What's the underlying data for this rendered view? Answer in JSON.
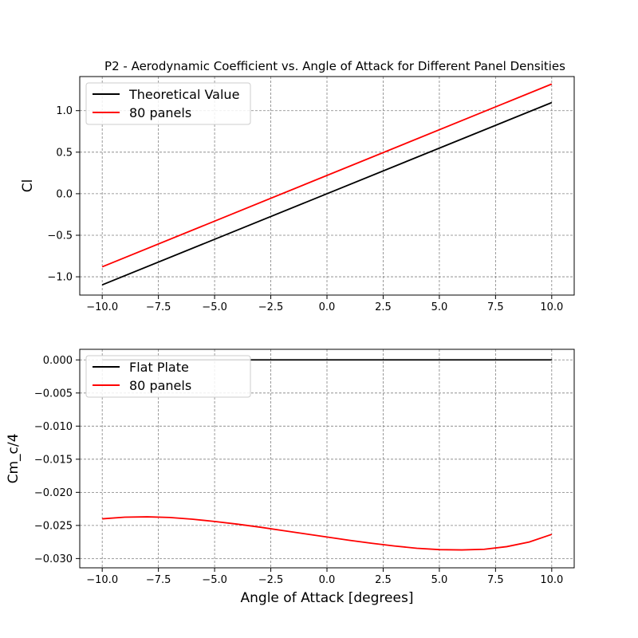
{
  "chart_data": [
    {
      "type": "line",
      "title": "P2 - Aerodynamic Coefficient vs. Angle of Attack for Different Panel Densities",
      "xlabel": "",
      "ylabel": "Cl",
      "xlim": [
        -11,
        11
      ],
      "ylim": [
        -1.22,
        1.41
      ],
      "xticks": [
        -10,
        -7.5,
        -5,
        -2.5,
        0,
        2.5,
        5,
        7.5,
        10
      ],
      "xtick_labels": [
        "−10.0",
        "−7.5",
        "−5.0",
        "−2.5",
        "0.0",
        "2.5",
        "5.0",
        "7.5",
        "10.0"
      ],
      "yticks": [
        -1.0,
        -0.5,
        0.0,
        0.5,
        1.0
      ],
      "ytick_labels": [
        "−1.0",
        "−0.5",
        "0.0",
        "0.5",
        "1.0"
      ],
      "grid": true,
      "legend_position": "upper-left",
      "series": [
        {
          "name": "Theoretical Value",
          "color": "#000000",
          "x": [
            -10,
            10
          ],
          "y": [
            -1.097,
            1.097
          ]
        },
        {
          "name": "80 panels",
          "color": "#ff0000",
          "x": [
            -10,
            10
          ],
          "y": [
            -0.88,
            1.32
          ]
        }
      ]
    },
    {
      "type": "line",
      "title": "",
      "xlabel": "Angle of Attack [degrees]",
      "ylabel": "Cm_c/4",
      "xlim": [
        -11,
        11
      ],
      "ylim": [
        -0.0314,
        0.0016
      ],
      "xticks": [
        -10,
        -7.5,
        -5,
        -2.5,
        0,
        2.5,
        5,
        7.5,
        10
      ],
      "xtick_labels": [
        "−10.0",
        "−7.5",
        "−5.0",
        "−2.5",
        "0.0",
        "2.5",
        "5.0",
        "7.5",
        "10.0"
      ],
      "yticks": [
        0.0,
        -0.005,
        -0.01,
        -0.015,
        -0.02,
        -0.025,
        -0.03
      ],
      "ytick_labels": [
        "0.000",
        "−0.005",
        "−0.010",
        "−0.015",
        "−0.020",
        "−0.025",
        "−0.030"
      ],
      "grid": true,
      "legend_position": "upper-left",
      "series": [
        {
          "name": "Flat Plate",
          "color": "#000000",
          "x": [
            -10,
            10
          ],
          "y": [
            0.0,
            0.0
          ]
        },
        {
          "name": "80 panels",
          "color": "#ff0000",
          "x": [
            -10,
            -9,
            -8,
            -7,
            -6,
            -5,
            -4,
            -3,
            -2,
            -1,
            0,
            1,
            2,
            3,
            4,
            5,
            6,
            7,
            8,
            9,
            10
          ],
          "y": [
            -0.024,
            -0.02375,
            -0.0237,
            -0.0238,
            -0.02405,
            -0.0244,
            -0.0248,
            -0.02525,
            -0.02575,
            -0.02625,
            -0.02675,
            -0.02725,
            -0.0277,
            -0.0281,
            -0.02845,
            -0.02865,
            -0.0287,
            -0.0286,
            -0.0282,
            -0.0275,
            -0.02635
          ]
        }
      ]
    }
  ]
}
